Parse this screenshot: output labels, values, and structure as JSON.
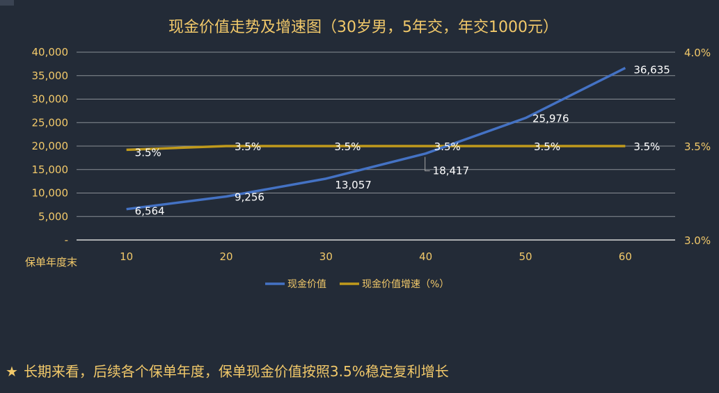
{
  "chart_data": {
    "type": "line",
    "title": "现金价值走势及增速图（30岁男，5年交，年交1000元）",
    "x_axis_name": "保单年度末",
    "categories": [
      "10",
      "20",
      "30",
      "40",
      "50",
      "60"
    ],
    "left_axis": {
      "ylim": [
        0,
        40000
      ],
      "ticks": [
        "-",
        "5,000",
        "10,000",
        "15,000",
        "20,000",
        "25,000",
        "30,000",
        "35,000",
        "40,000"
      ]
    },
    "right_axis": {
      "ylim": [
        3.0,
        4.0
      ],
      "ticks": [
        "3.0%",
        "3.5%",
        "4.0%"
      ]
    },
    "series": [
      {
        "name": "现金价值",
        "axis": "left",
        "color": "#4472c4",
        "values": [
          6564,
          9256,
          13057,
          18417,
          25976,
          36635
        ],
        "labels": [
          "6,564",
          "9,256",
          "13,057",
          "18,417",
          "25,976",
          "36,635"
        ]
      },
      {
        "name": "现金价值增速（%）",
        "axis": "right",
        "color": "#c09a1c",
        "values": [
          3.48,
          3.5,
          3.5,
          3.5,
          3.5,
          3.5
        ],
        "labels": [
          "3.5%",
          "3.5%",
          "3.5%",
          "3.5%",
          "3.5%",
          "3.5%"
        ]
      }
    ],
    "grid": true,
    "legend": "bottom-center"
  },
  "footnote": {
    "star": "★",
    "text": "长期来看，后续各个保单年度，保单现金价值按照3.5%稳定复利增长"
  }
}
